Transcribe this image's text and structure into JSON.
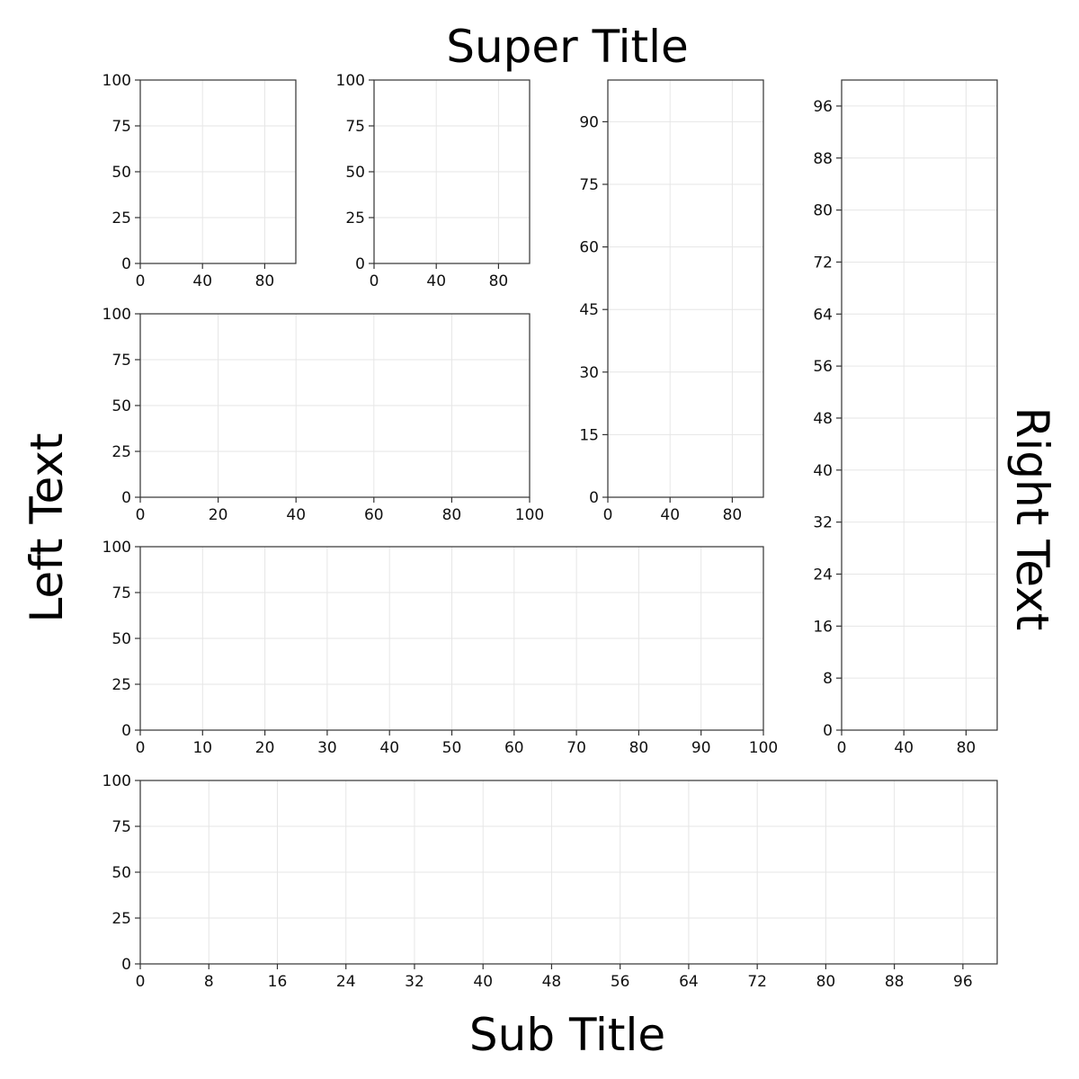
{
  "figure": {
    "super_title": "Super Title",
    "sub_title": "Sub Title",
    "left_text": "Left Text",
    "right_text": "Right Text"
  },
  "colors": {
    "axis": "#333333",
    "grid": "#e6e6e6",
    "text": "#000000"
  },
  "chart_data": [
    {
      "type": "line",
      "series": [],
      "xlim": [
        0,
        100
      ],
      "ylim": [
        0,
        100
      ],
      "xticks": [
        0,
        40,
        80
      ],
      "yticks": [
        0,
        25,
        50,
        75,
        100
      ],
      "grid": true
    },
    {
      "type": "line",
      "series": [],
      "xlim": [
        0,
        100
      ],
      "ylim": [
        0,
        100
      ],
      "xticks": [
        0,
        40,
        80
      ],
      "yticks": [
        0,
        25,
        50,
        75,
        100
      ],
      "grid": true
    },
    {
      "type": "line",
      "series": [],
      "xlim": [
        0,
        100
      ],
      "ylim": [
        0,
        100
      ],
      "xticks": [
        0,
        40,
        80
      ],
      "yticks": [
        0,
        15,
        30,
        45,
        60,
        75,
        90
      ],
      "grid": true
    },
    {
      "type": "line",
      "series": [],
      "xlim": [
        0,
        100
      ],
      "ylim": [
        0,
        100
      ],
      "xticks": [
        0,
        40,
        80
      ],
      "yticks": [
        0,
        8,
        16,
        24,
        32,
        40,
        48,
        56,
        64,
        72,
        80,
        88,
        96
      ],
      "grid": true
    },
    {
      "type": "line",
      "series": [],
      "xlim": [
        0,
        100
      ],
      "ylim": [
        0,
        100
      ],
      "xticks": [
        0,
        20,
        40,
        60,
        80,
        100
      ],
      "yticks": [
        0,
        25,
        50,
        75,
        100
      ],
      "grid": true
    },
    {
      "type": "line",
      "series": [],
      "xlim": [
        0,
        100
      ],
      "ylim": [
        0,
        100
      ],
      "xticks": [
        0,
        10,
        20,
        30,
        40,
        50,
        60,
        70,
        80,
        90,
        100
      ],
      "yticks": [
        0,
        25,
        50,
        75,
        100
      ],
      "grid": true
    },
    {
      "type": "line",
      "series": [],
      "xlim": [
        0,
        100
      ],
      "ylim": [
        0,
        100
      ],
      "xticks": [
        0,
        8,
        16,
        24,
        32,
        40,
        48,
        56,
        64,
        72,
        80,
        88,
        96
      ],
      "yticks": [
        0,
        25,
        50,
        75,
        100
      ],
      "grid": true
    }
  ]
}
